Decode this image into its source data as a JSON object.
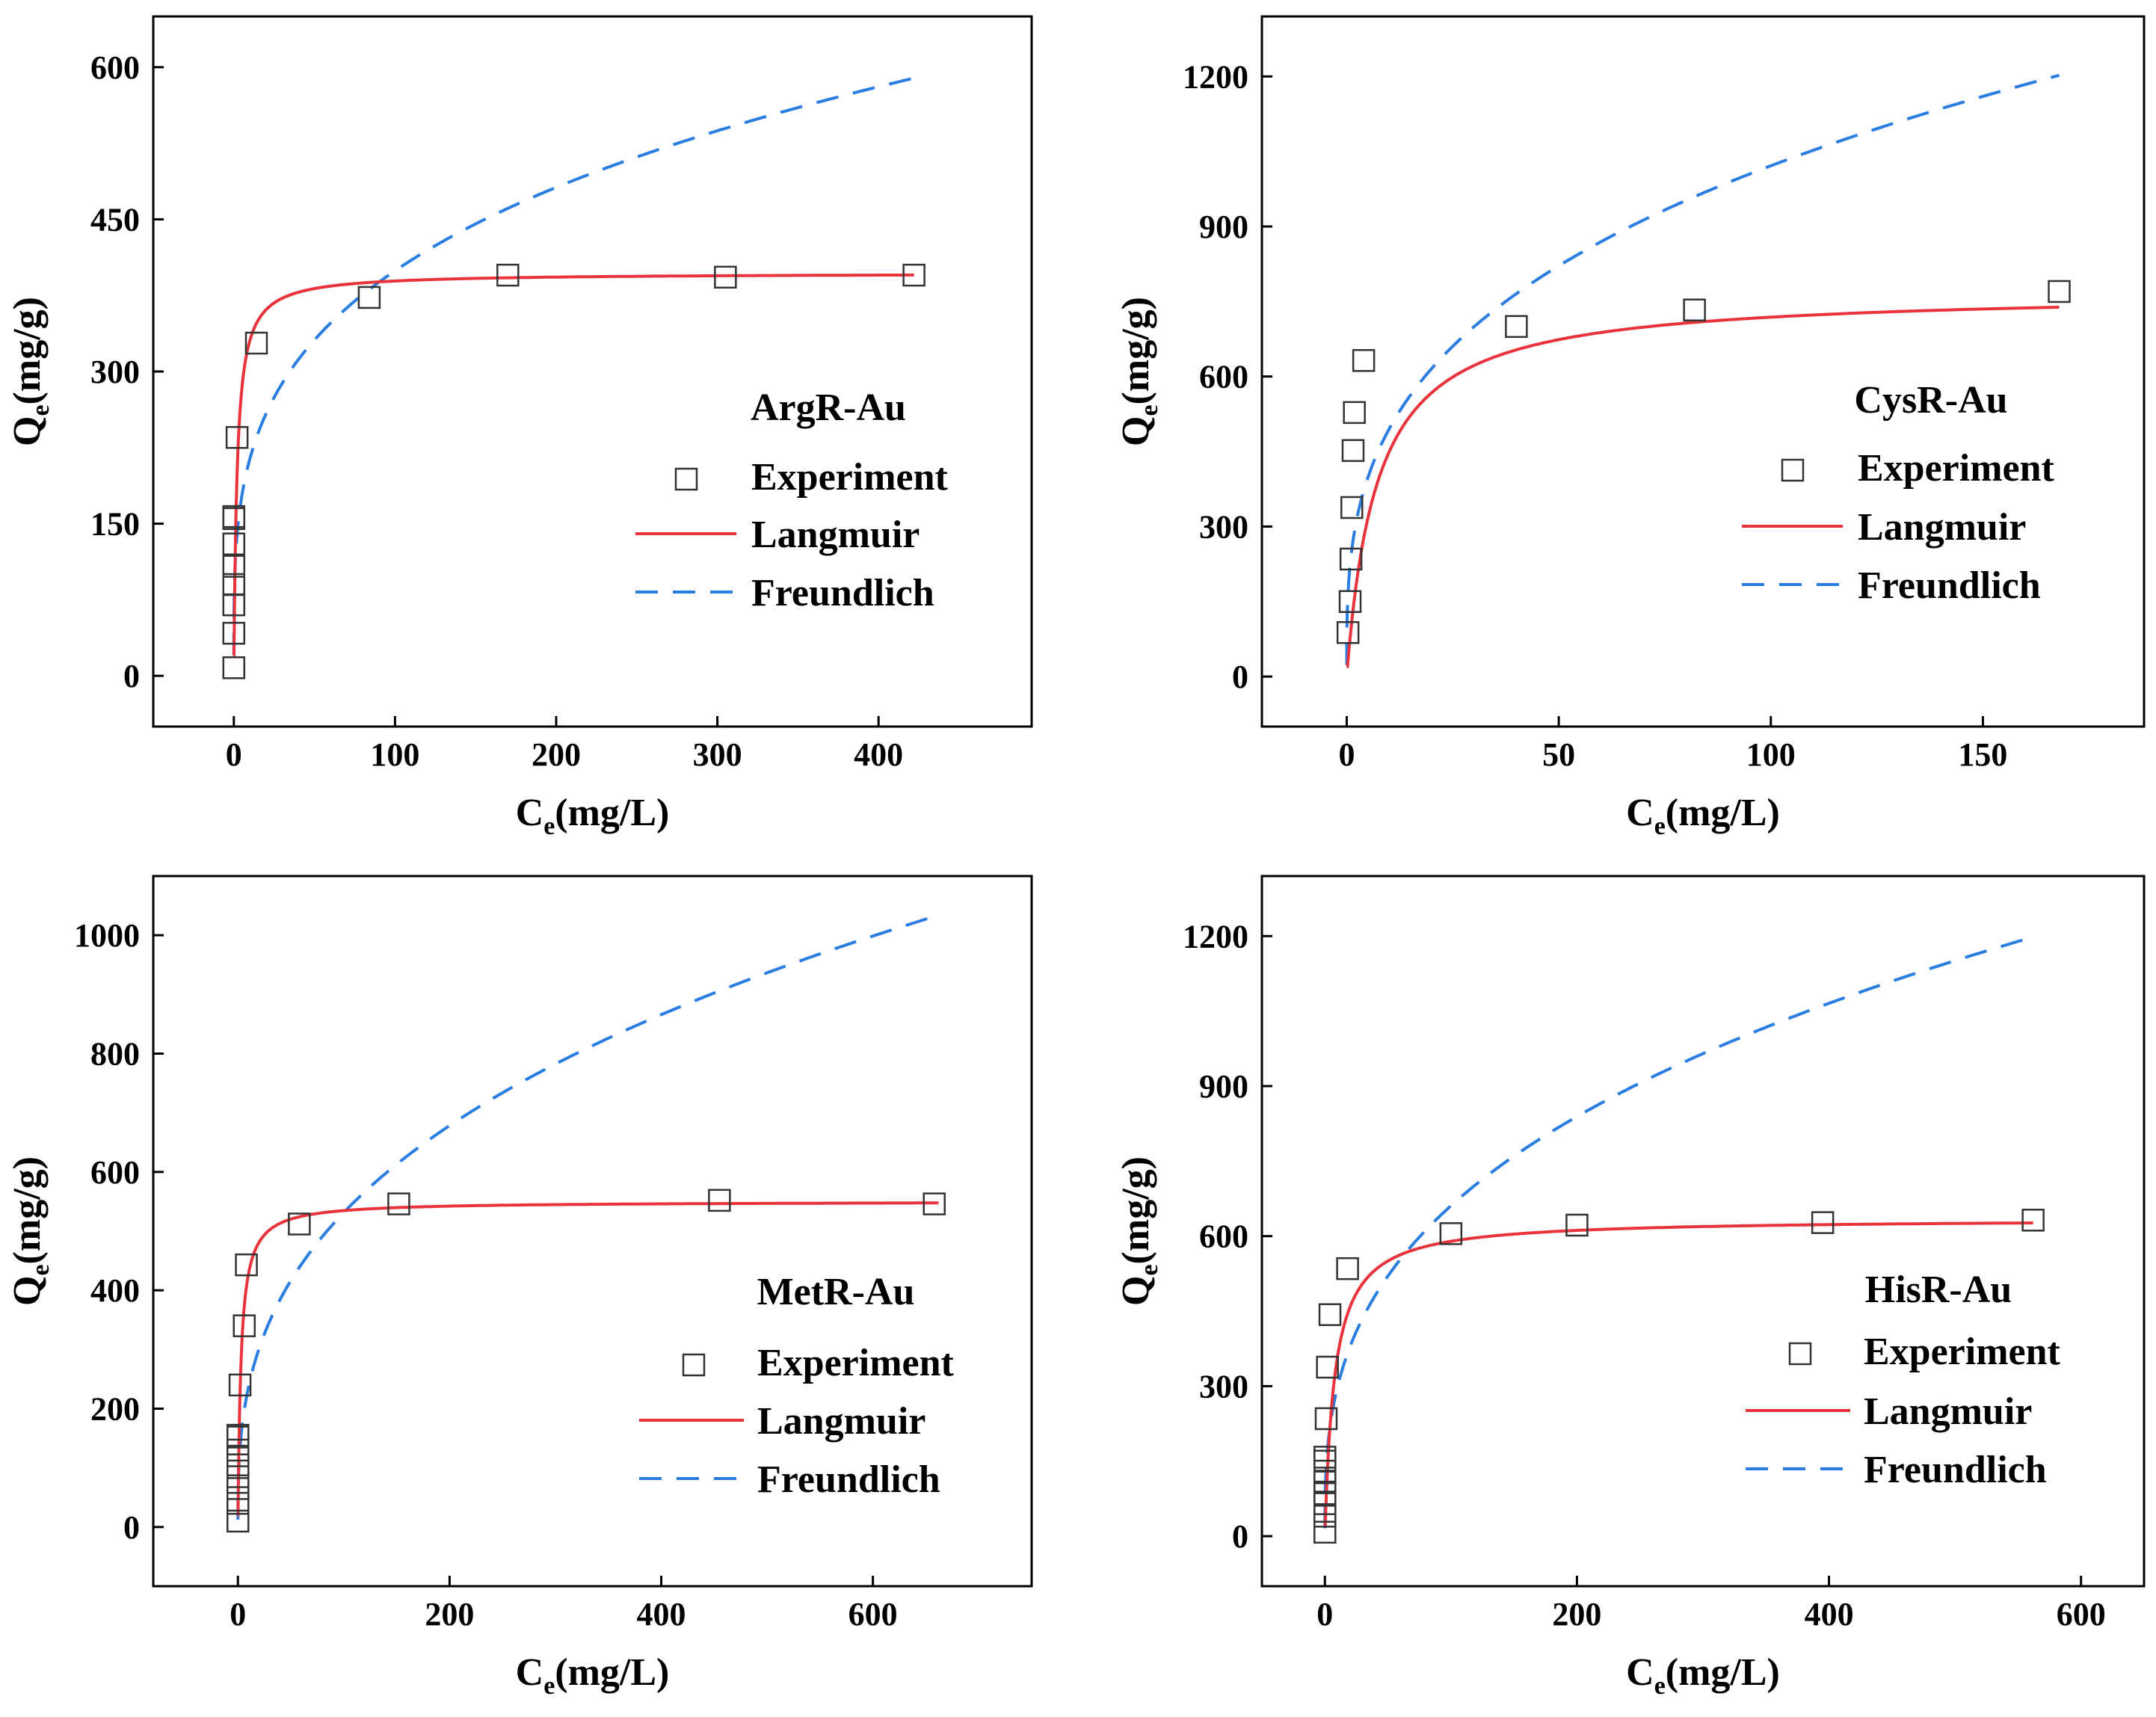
{
  "styles": {
    "langmuir_color": "#e8323c",
    "freundlich_color": "#2a7de1",
    "marker_color": "#333333",
    "axis_color": "#000000"
  },
  "chart_data": [
    {
      "type": "scatter",
      "title": "ArgR-Au",
      "xlabel": {
        "main": "C",
        "sub": "e",
        "rest": "(mg/L)"
      },
      "ylabel": {
        "main": "Q",
        "sub": "e",
        "rest": "(mg/g)"
      },
      "xlim": [
        -50,
        495
      ],
      "ylim": [
        -50,
        650
      ],
      "xticks": [
        0,
        100,
        200,
        300,
        400
      ],
      "yticks": [
        0,
        150,
        300,
        450,
        600
      ],
      "legend": {
        "position": "right-middle",
        "entries": [
          "Experiment",
          "Langmuir",
          "Freundlich"
        ]
      },
      "experiment": {
        "x": [
          0,
          0,
          0,
          0,
          0,
          0,
          0,
          0,
          2,
          14,
          84,
          170,
          305,
          422
        ],
        "y": [
          8,
          42,
          70,
          90,
          108,
          130,
          155,
          157,
          235,
          328,
          373,
          395,
          393,
          395
        ]
      },
      "langmuir": {
        "qmax": 397,
        "kl": 0.5,
        "xmax": 422
      },
      "freundlich": {
        "kf": 115,
        "n": 3.7,
        "xmax": 422
      }
    },
    {
      "type": "scatter",
      "title": "CysR-Au",
      "xlabel": {
        "main": "C",
        "sub": "e",
        "rest": "(mg/L)"
      },
      "ylabel": {
        "main": "Q",
        "sub": "e",
        "rest": "(mg/g)"
      },
      "xlim": [
        -20,
        188
      ],
      "ylim": [
        -100,
        1320
      ],
      "xticks": [
        0,
        50,
        100,
        150
      ],
      "yticks": [
        0,
        300,
        600,
        900,
        1200
      ],
      "legend": {
        "position": "right-middle",
        "entries": [
          "Experiment",
          "Langmuir",
          "Freundlich"
        ]
      },
      "experiment": {
        "x": [
          0.3,
          0.8,
          1,
          1.2,
          1.5,
          1.8,
          4,
          40,
          82,
          168
        ],
        "y": [
          88,
          150,
          235,
          338,
          452,
          528,
          632,
          700,
          733,
          770
        ]
      },
      "langmuir": {
        "qmax": 770,
        "kl": 0.14,
        "xmax": 168
      },
      "freundlich": {
        "kf": 240,
        "n": 3.18,
        "xmax": 168
      }
    },
    {
      "type": "scatter",
      "title": "MetR-Au",
      "xlabel": {
        "main": "C",
        "sub": "e",
        "rest": "(mg/L)"
      },
      "ylabel": {
        "main": "Q",
        "sub": "e",
        "rest": "(mg/g)"
      },
      "xlim": [
        -80,
        750
      ],
      "ylim": [
        -100,
        1100
      ],
      "xticks": [
        0,
        200,
        400,
        600
      ],
      "yticks": [
        0,
        200,
        400,
        600,
        800,
        1000
      ],
      "legend": {
        "position": "right-middle",
        "entries": [
          "Experiment",
          "Langmuir",
          "Freundlich"
        ]
      },
      "experiment": {
        "x": [
          0,
          0,
          0,
          0,
          0,
          0,
          0,
          0,
          2,
          6,
          8,
          58,
          152,
          455,
          658
        ],
        "y": [
          10,
          40,
          65,
          85,
          105,
          130,
          152,
          155,
          240,
          340,
          443,
          512,
          546,
          552,
          546
        ]
      },
      "langmuir": {
        "qmax": 550,
        "kl": 0.35,
        "xmax": 662
      },
      "freundlich": {
        "kf": 105,
        "n": 2.84,
        "xmax": 662
      }
    },
    {
      "type": "scatter",
      "title": "HisR-Au",
      "xlabel": {
        "main": "C",
        "sub": "e",
        "rest": "(mg/L)"
      },
      "ylabel": {
        "main": "Q",
        "sub": "e",
        "rest": "(mg/g)"
      },
      "xlim": [
        -50,
        650
      ],
      "ylim": [
        -100,
        1320
      ],
      "xticks": [
        0,
        200,
        400,
        600
      ],
      "yticks": [
        0,
        300,
        600,
        900,
        1200
      ],
      "legend": {
        "position": "right-middle",
        "entries": [
          "Experiment",
          "Langmuir",
          "Freundlich"
        ]
      },
      "experiment": {
        "x": [
          0,
          0,
          0,
          0,
          0,
          0,
          0,
          0,
          1,
          2,
          4,
          18,
          100,
          200,
          395,
          562
        ],
        "y": [
          8,
          40,
          65,
          85,
          110,
          130,
          150,
          158,
          235,
          338,
          443,
          535,
          605,
          622,
          627,
          632
        ]
      },
      "langmuir": {
        "qmax": 635,
        "kl": 0.13,
        "xmax": 562
      },
      "freundlich": {
        "kf": 135,
        "n": 2.9,
        "xmax": 562
      }
    }
  ]
}
